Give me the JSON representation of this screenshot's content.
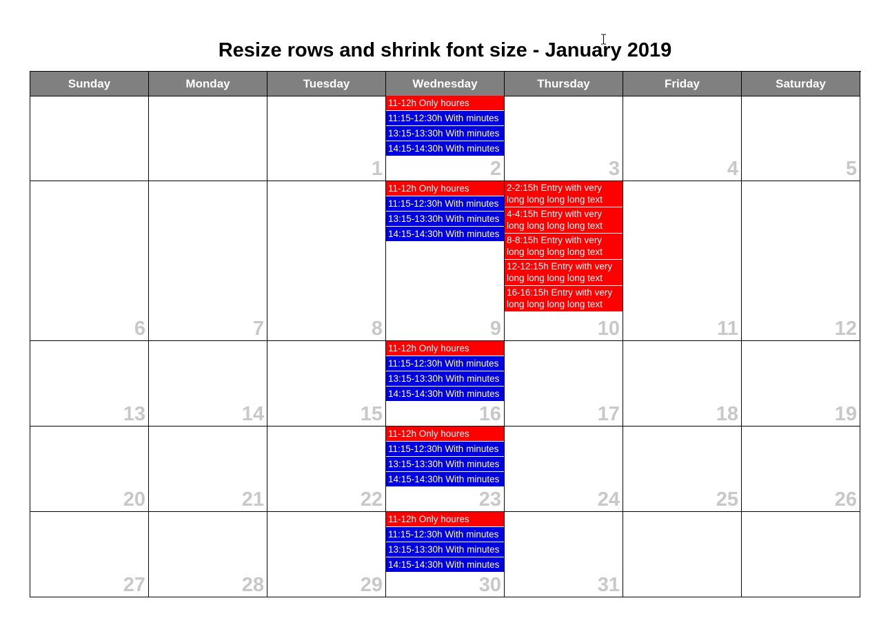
{
  "title": "Resize rows and shrink font size - January 2019",
  "colors": {
    "header_bg": "#808080",
    "header_text": "#ffffff",
    "red_event": "#ff0000",
    "blue_event": "#0000e0",
    "day_number": "#c8c8c8"
  },
  "calendar": {
    "day_names": [
      "Sunday",
      "Monday",
      "Tuesday",
      "Wednesday",
      "Thursday",
      "Friday",
      "Saturday"
    ],
    "weeks": [
      {
        "cells": [
          {
            "day": "",
            "events": []
          },
          {
            "day": "",
            "events": []
          },
          {
            "day": "1",
            "events": []
          },
          {
            "day": "2",
            "events": [
              {
                "text": "11-12h Only houres",
                "color": "red"
              },
              {
                "text": "11:15-12:30h With minutes",
                "color": "blue"
              },
              {
                "text": "13:15-13:30h With minutes",
                "color": "blue"
              },
              {
                "text": "14:15-14:30h With minutes",
                "color": "blue"
              }
            ]
          },
          {
            "day": "3",
            "events": []
          },
          {
            "day": "4",
            "events": []
          },
          {
            "day": "5",
            "events": []
          }
        ]
      },
      {
        "cells": [
          {
            "day": "6",
            "events": []
          },
          {
            "day": "7",
            "events": []
          },
          {
            "day": "8",
            "events": []
          },
          {
            "day": "9",
            "events": [
              {
                "text": "11-12h Only houres",
                "color": "red"
              },
              {
                "text": "11:15-12:30h With minutes",
                "color": "blue"
              },
              {
                "text": "13:15-13:30h With minutes",
                "color": "blue"
              },
              {
                "text": "14:15-14:30h With minutes",
                "color": "blue"
              }
            ]
          },
          {
            "day": "10",
            "events": [
              {
                "text": "2-2:15h Entry with very long long long long text",
                "color": "red"
              },
              {
                "text": "4-4:15h Entry with very long long long long text",
                "color": "red"
              },
              {
                "text": "8-8:15h Entry with very long long long long text",
                "color": "red"
              },
              {
                "text": "12-12:15h Entry with very long long long long text",
                "color": "red"
              },
              {
                "text": "16-16:15h Entry with very long long long long text",
                "color": "red"
              }
            ]
          },
          {
            "day": "11",
            "events": []
          },
          {
            "day": "12",
            "events": []
          }
        ]
      },
      {
        "cells": [
          {
            "day": "13",
            "events": []
          },
          {
            "day": "14",
            "events": []
          },
          {
            "day": "15",
            "events": []
          },
          {
            "day": "16",
            "events": [
              {
                "text": "11-12h Only houres",
                "color": "red"
              },
              {
                "text": "11:15-12:30h With minutes",
                "color": "blue"
              },
              {
                "text": "13:15-13:30h With minutes",
                "color": "blue"
              },
              {
                "text": "14:15-14:30h With minutes",
                "color": "blue"
              }
            ]
          },
          {
            "day": "17",
            "events": []
          },
          {
            "day": "18",
            "events": []
          },
          {
            "day": "19",
            "events": []
          }
        ]
      },
      {
        "cells": [
          {
            "day": "20",
            "events": []
          },
          {
            "day": "21",
            "events": []
          },
          {
            "day": "22",
            "events": []
          },
          {
            "day": "23",
            "events": [
              {
                "text": "11-12h Only houres",
                "color": "red"
              },
              {
                "text": "11:15-12:30h With minutes",
                "color": "blue"
              },
              {
                "text": "13:15-13:30h With minutes",
                "color": "blue"
              },
              {
                "text": "14:15-14:30h With minutes",
                "color": "blue"
              }
            ]
          },
          {
            "day": "24",
            "events": []
          },
          {
            "day": "25",
            "events": []
          },
          {
            "day": "26",
            "events": []
          }
        ]
      },
      {
        "cells": [
          {
            "day": "27",
            "events": []
          },
          {
            "day": "28",
            "events": []
          },
          {
            "day": "29",
            "events": []
          },
          {
            "day": "30",
            "events": [
              {
                "text": "11-12h Only houres",
                "color": "red"
              },
              {
                "text": "11:15-12:30h With minutes",
                "color": "blue"
              },
              {
                "text": "13:15-13:30h With minutes",
                "color": "blue"
              },
              {
                "text": "14:15-14:30h With minutes",
                "color": "blue"
              }
            ]
          },
          {
            "day": "31",
            "events": []
          },
          {
            "day": "",
            "events": []
          },
          {
            "day": "",
            "events": []
          }
        ]
      }
    ]
  }
}
